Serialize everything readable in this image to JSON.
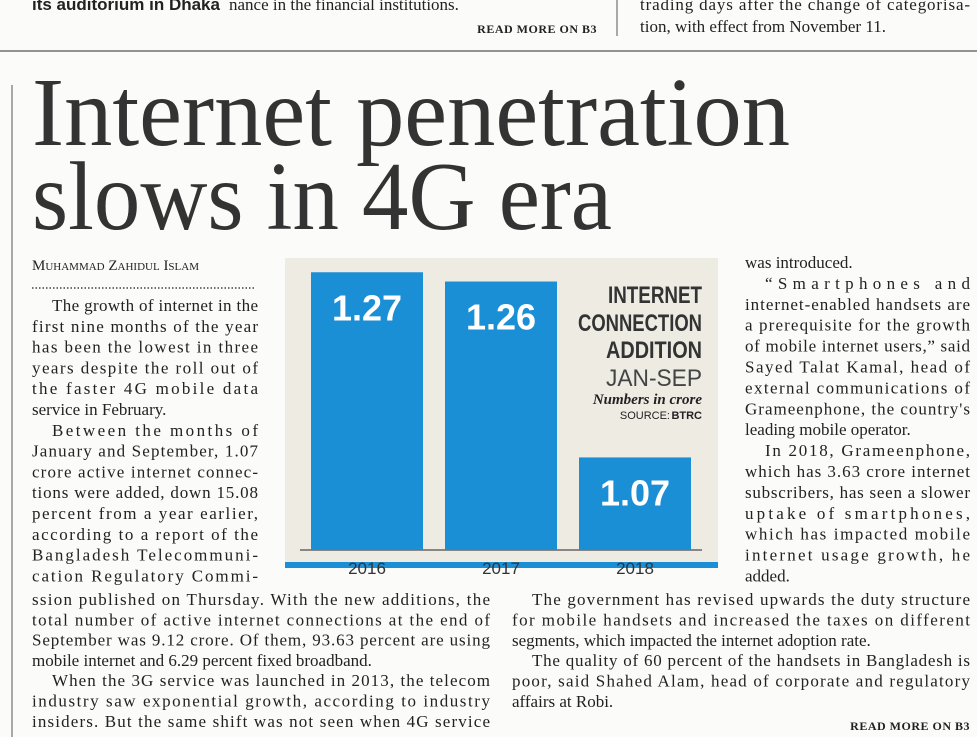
{
  "top_strip": {
    "left_lines": [
      "its auditorium in Dhaka"
    ],
    "middle_lines": [
      "nance in the financial institutions."
    ],
    "middle_read_more": "READ MORE ON B3",
    "right_lines": [
      "trading days after the change of categorisa-",
      "tion, with effect from November 11."
    ]
  },
  "headline": [
    "Internet penetration",
    "slows in 4G era"
  ],
  "byline": "Muhammad Zahidul Islam",
  "chart_data": {
    "type": "bar",
    "title_lines": [
      "INTERNET",
      "CONNECTION",
      "ADDITION"
    ],
    "subtitle": "JAN-SEP",
    "unit_note": "Numbers in crore",
    "source_label": "SOURCE:",
    "source": "BTRC",
    "categories": [
      "2016",
      "2017",
      "2018"
    ],
    "values": [
      1.27,
      1.26,
      1.07
    ],
    "color": "#1a8fd6",
    "ylim": [
      0.97,
      1.28
    ]
  },
  "article": {
    "left_column": [
      [
        "The growth of internet in the",
        "first nine months of the year",
        "has been the lowest in three",
        "years despite the roll out of",
        "the faster 4G mobile data",
        "service in February."
      ],
      [
        "Between the months of",
        "January and September, 1.07",
        "crore active internet connec-",
        "tions were added, down 15.08",
        "percent from a year earlier,",
        "according to a report of the",
        "Bangladesh Telecommuni-",
        "cation Regulatory Commi-"
      ]
    ],
    "bottom_left": [
      [
        "ssion published on Thursday. With the new additions, the",
        "total number of active internet connections at the end of",
        "September was 9.12 crore. Of them, 93.63 percent are using",
        "mobile internet and 6.29 percent fixed broadband."
      ],
      [
        "When the 3G service was launched in 2013, the telecom",
        "industry saw exponential growth, according to industry",
        "insiders. But the same shift was not seen when 4G service"
      ]
    ],
    "right_column": [
      [
        "was introduced."
      ],
      [
        "“Smartphones and",
        "internet-enabled handsets are",
        "a prerequisite for the growth",
        "of mobile internet users,” said",
        "Sayed Talat Kamal, head of",
        "external communications of",
        "Grameenphone, the country's",
        "leading mobile operator."
      ],
      [
        "In 2018, Grameenphone,",
        "which has 3.63 crore internet",
        "subscribers, has seen a slower",
        "uptake of smartphones,",
        "which has impacted mobile",
        "internet usage growth, he",
        "added."
      ]
    ],
    "bottom_middle": [
      [
        "The government has revised upwards the duty structure",
        "for mobile handsets and increased the taxes on different",
        "segments, which impacted the internet adoption rate."
      ],
      [
        "The quality of 60 percent of the handsets in Bangladesh is",
        "poor, said Shahed Alam, head of corporate and regulatory",
        "affairs at Robi."
      ]
    ],
    "read_more": "READ MORE ON B3"
  }
}
